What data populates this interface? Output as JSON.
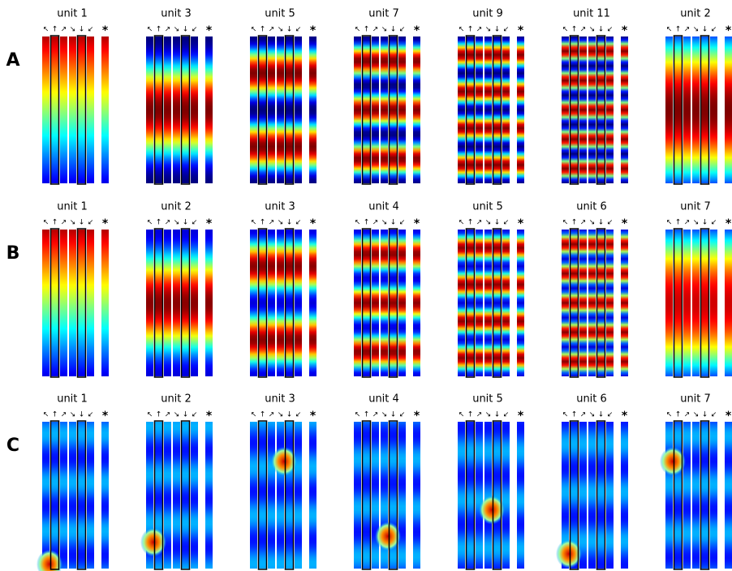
{
  "rows": [
    {
      "label": "A",
      "units": [
        "unit 1",
        "unit 3",
        "unit 5",
        "unit 7",
        "unit 9",
        "unit 11",
        "unit 2"
      ]
    },
    {
      "label": "B",
      "units": [
        "unit 1",
        "unit 2",
        "unit 3",
        "unit 4",
        "unit 5",
        "unit 6",
        "unit 7"
      ]
    },
    {
      "label": "C",
      "units": [
        "unit 1",
        "unit 2",
        "unit 3",
        "unit 4",
        "unit 5",
        "unit 6",
        "unit 7"
      ]
    }
  ],
  "direction_symbols": [
    "↖",
    "↑",
    "↗",
    "↘",
    "↓",
    "↙"
  ],
  "combined_marker": "*"
}
